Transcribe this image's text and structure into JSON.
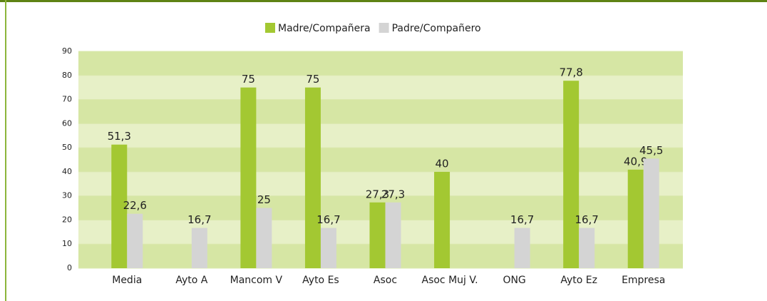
{
  "chart_data": {
    "type": "bar",
    "categories": [
      "Media",
      "Ayto A",
      "Mancom V",
      "Ayto  Es",
      "Asoc",
      "Asoc Muj V.",
      "ONG",
      "Ayto  Ez",
      "Empresa"
    ],
    "series": [
      {
        "name": "Madre/Compañera",
        "color": "#a3c832",
        "values": [
          51.3,
          null,
          75,
          75,
          27.3,
          40,
          null,
          77.8,
          40.9
        ],
        "value_labels": [
          "51,3",
          null,
          "75",
          "75",
          "27,3",
          "40",
          null,
          "77,8",
          "40,9"
        ]
      },
      {
        "name": "Padre/Compañero",
        "color": "#d4d4d4",
        "values": [
          22.6,
          16.7,
          25,
          16.7,
          27.3,
          null,
          16.7,
          16.7,
          45.5
        ],
        "value_labels": [
          "22,6",
          "16,7",
          "25",
          "16,7",
          "27,3",
          null,
          "16,7",
          "16,7",
          "45,5"
        ]
      }
    ],
    "ylim": [
      0,
      90
    ],
    "yticks": [
      0,
      10,
      20,
      30,
      40,
      50,
      60,
      70,
      80,
      90
    ],
    "grid": true,
    "legend": "top"
  }
}
